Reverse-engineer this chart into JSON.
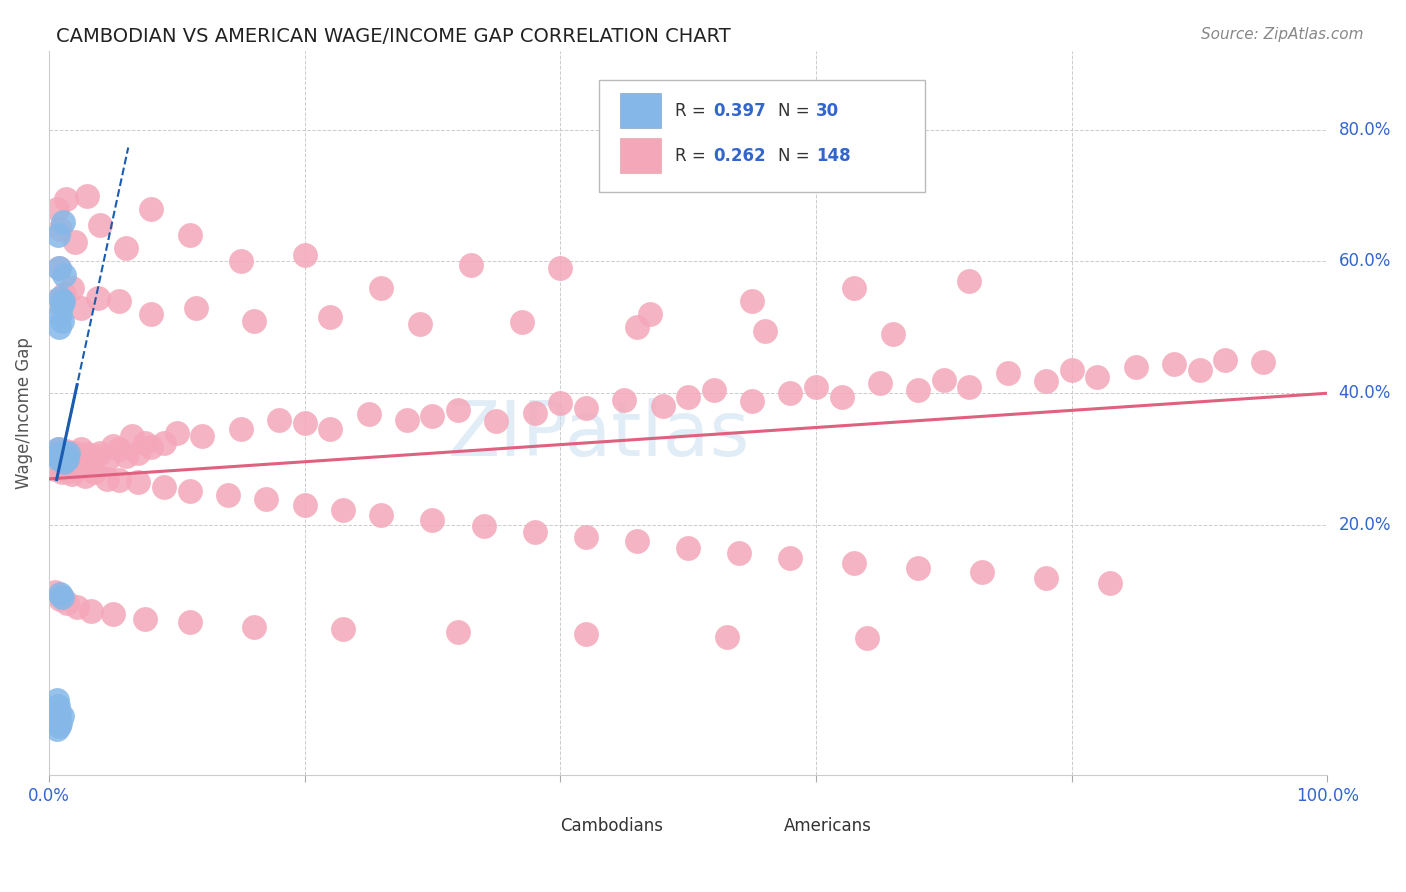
{
  "title": "CAMBODIAN VS AMERICAN WAGE/INCOME GAP CORRELATION CHART",
  "source": "Source: ZipAtlas.com",
  "ylabel": "Wage/Income Gap",
  "xlim": [
    0.0,
    1.0
  ],
  "ylim": [
    -0.18,
    0.92
  ],
  "cambodian_color": "#85b8e8",
  "american_color": "#f4a7b9",
  "cambodian_line_color": "#1a5cb0",
  "american_line_color": "#e06080",
  "background_color": "#ffffff",
  "watermark": "ZIPatlas",
  "legend_R_cambodian": "0.397",
  "legend_N_cambodian": "30",
  "legend_R_american": "0.262",
  "legend_N_american": "148",
  "cam_x": [
    0.006,
    0.007,
    0.008,
    0.009,
    0.01,
    0.011,
    0.012,
    0.013,
    0.014,
    0.015,
    0.007,
    0.008,
    0.009,
    0.01,
    0.011,
    0.012,
    0.008,
    0.009,
    0.01,
    0.011,
    0.006,
    0.007,
    0.008,
    0.009,
    0.01,
    0.006,
    0.007,
    0.008,
    0.009,
    0.01
  ],
  "cam_y": [
    0.305,
    0.315,
    0.3,
    0.31,
    0.298,
    0.308,
    0.295,
    0.305,
    0.3,
    0.31,
    0.64,
    0.59,
    0.545,
    0.535,
    0.66,
    0.58,
    0.5,
    0.52,
    0.51,
    0.54,
    -0.065,
    -0.075,
    -0.085,
    -0.1,
    -0.09,
    -0.11,
    -0.095,
    -0.105,
    0.095,
    0.09
  ],
  "am_x": [
    0.005,
    0.006,
    0.007,
    0.008,
    0.009,
    0.01,
    0.011,
    0.012,
    0.013,
    0.014,
    0.015,
    0.016,
    0.017,
    0.018,
    0.019,
    0.02,
    0.022,
    0.025,
    0.028,
    0.03,
    0.032,
    0.035,
    0.04,
    0.045,
    0.05,
    0.055,
    0.06,
    0.065,
    0.07,
    0.075,
    0.08,
    0.09,
    0.1,
    0.12,
    0.15,
    0.18,
    0.2,
    0.22,
    0.25,
    0.28,
    0.3,
    0.32,
    0.35,
    0.38,
    0.4,
    0.42,
    0.45,
    0.48,
    0.5,
    0.52,
    0.55,
    0.58,
    0.6,
    0.62,
    0.65,
    0.68,
    0.7,
    0.72,
    0.75,
    0.78,
    0.8,
    0.82,
    0.85,
    0.88,
    0.9,
    0.92,
    0.95,
    0.005,
    0.007,
    0.008,
    0.01,
    0.012,
    0.015,
    0.018,
    0.022,
    0.028,
    0.035,
    0.045,
    0.055,
    0.07,
    0.09,
    0.11,
    0.14,
    0.17,
    0.2,
    0.23,
    0.26,
    0.3,
    0.34,
    0.38,
    0.42,
    0.46,
    0.5,
    0.54,
    0.58,
    0.63,
    0.68,
    0.73,
    0.78,
    0.83,
    0.006,
    0.009,
    0.013,
    0.02,
    0.03,
    0.04,
    0.06,
    0.08,
    0.11,
    0.15,
    0.2,
    0.26,
    0.33,
    0.4,
    0.47,
    0.55,
    0.63,
    0.72,
    0.005,
    0.008,
    0.012,
    0.018,
    0.025,
    0.038,
    0.055,
    0.08,
    0.115,
    0.16,
    0.22,
    0.29,
    0.37,
    0.46,
    0.56,
    0.66,
    0.005,
    0.009,
    0.014,
    0.022,
    0.033,
    0.05,
    0.075,
    0.11,
    0.16,
    0.23,
    0.32,
    0.42,
    0.53,
    0.64
  ],
  "am_y": [
    0.305,
    0.31,
    0.298,
    0.315,
    0.302,
    0.308,
    0.298,
    0.305,
    0.312,
    0.299,
    0.305,
    0.295,
    0.308,
    0.302,
    0.295,
    0.31,
    0.305,
    0.315,
    0.298,
    0.308,
    0.295,
    0.305,
    0.31,
    0.298,
    0.32,
    0.315,
    0.305,
    0.335,
    0.31,
    0.325,
    0.318,
    0.325,
    0.34,
    0.335,
    0.345,
    0.36,
    0.355,
    0.345,
    0.368,
    0.36,
    0.365,
    0.375,
    0.358,
    0.37,
    0.385,
    0.378,
    0.39,
    0.38,
    0.395,
    0.405,
    0.388,
    0.4,
    0.41,
    0.395,
    0.415,
    0.405,
    0.42,
    0.41,
    0.43,
    0.418,
    0.435,
    0.425,
    0.44,
    0.445,
    0.435,
    0.45,
    0.448,
    0.285,
    0.29,
    0.285,
    0.28,
    0.288,
    0.282,
    0.278,
    0.285,
    0.275,
    0.28,
    0.27,
    0.268,
    0.265,
    0.258,
    0.252,
    0.245,
    0.24,
    0.23,
    0.222,
    0.215,
    0.208,
    0.198,
    0.19,
    0.182,
    0.175,
    0.165,
    0.158,
    0.15,
    0.142,
    0.135,
    0.128,
    0.12,
    0.112,
    0.68,
    0.65,
    0.695,
    0.63,
    0.7,
    0.655,
    0.62,
    0.68,
    0.64,
    0.6,
    0.61,
    0.56,
    0.595,
    0.59,
    0.52,
    0.54,
    0.56,
    0.57,
    0.54,
    0.59,
    0.55,
    0.56,
    0.53,
    0.545,
    0.54,
    0.52,
    0.53,
    0.51,
    0.515,
    0.505,
    0.508,
    0.5,
    0.495,
    0.49,
    0.098,
    0.088,
    0.082,
    0.075,
    0.07,
    0.065,
    0.058,
    0.052,
    0.045,
    0.042,
    0.038,
    0.035,
    0.03,
    0.028
  ]
}
